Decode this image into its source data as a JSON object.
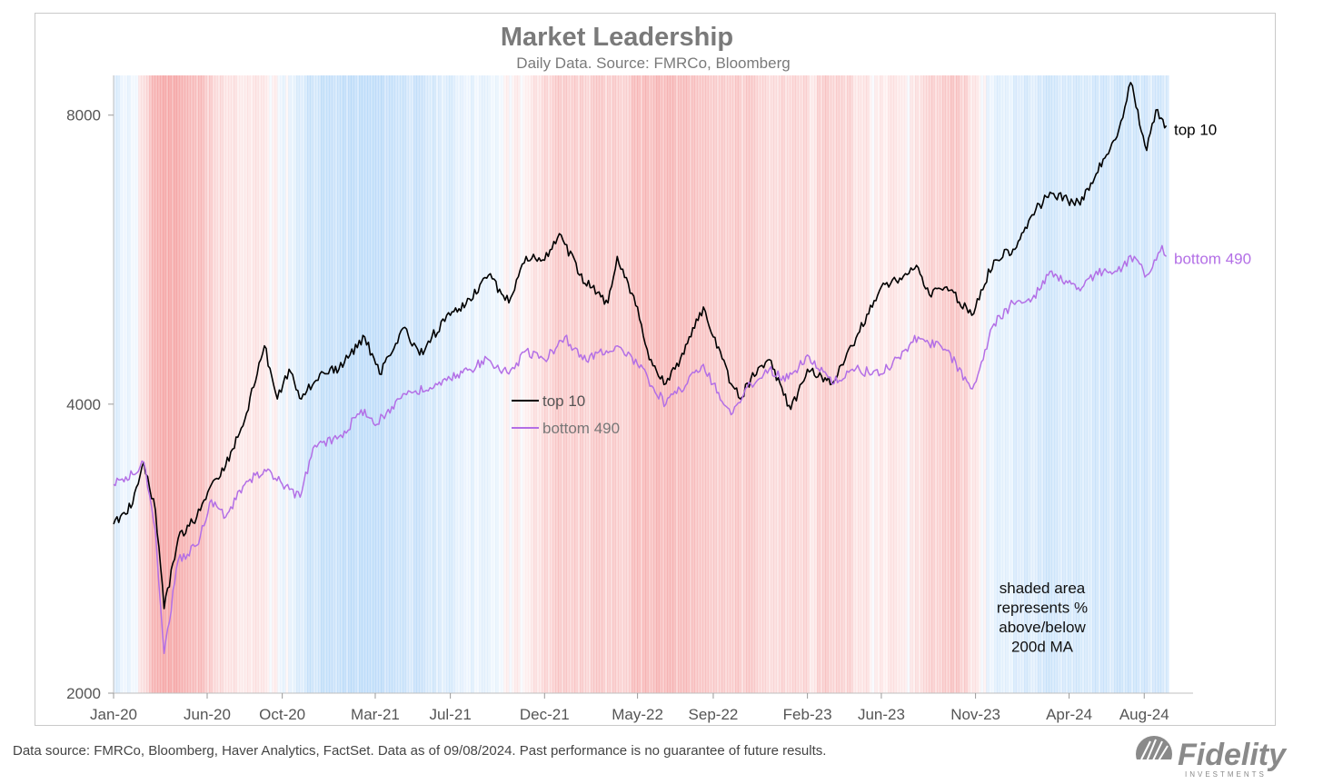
{
  "chart_data": {
    "type": "line",
    "title": "Market Leadership",
    "subtitle": "Daily Data.  Source: FMRCo, Bloomberg",
    "y_scale": "log",
    "ylim": [
      2000,
      8800
    ],
    "y_ticks": [
      {
        "value": 2000,
        "label": "2000"
      },
      {
        "value": 4000,
        "label": "4000"
      },
      {
        "value": 8000,
        "label": "8000"
      }
    ],
    "x_range": [
      "2020-01-01",
      "2024-09-08"
    ],
    "x_ticks": [
      {
        "date": "2020-01-01",
        "label": "Jan-20"
      },
      {
        "date": "2020-06-01",
        "label": "Jun-20"
      },
      {
        "date": "2020-10-01",
        "label": "Oct-20"
      },
      {
        "date": "2021-03-01",
        "label": "Mar-21"
      },
      {
        "date": "2021-07-01",
        "label": "Jul-21"
      },
      {
        "date": "2021-12-01",
        "label": "Dec-21"
      },
      {
        "date": "2022-05-01",
        "label": "May-22"
      },
      {
        "date": "2022-09-01",
        "label": "Sep-22"
      },
      {
        "date": "2023-02-01",
        "label": "Feb-23"
      },
      {
        "date": "2023-06-01",
        "label": "Jun-23"
      },
      {
        "date": "2023-11-01",
        "label": "Nov-23"
      },
      {
        "date": "2024-04-01",
        "label": "Apr-24"
      },
      {
        "date": "2024-08-01",
        "label": "Aug-24"
      }
    ],
    "series": [
      {
        "name": "top 10",
        "color": "#000000",
        "points": [
          [
            "2020-01-01",
            3000
          ],
          [
            "2020-02-01",
            3150
          ],
          [
            "2020-02-19",
            3480
          ],
          [
            "2020-03-09",
            3100
          ],
          [
            "2020-03-23",
            2450
          ],
          [
            "2020-04-15",
            2900
          ],
          [
            "2020-05-15",
            3050
          ],
          [
            "2020-06-08",
            3300
          ],
          [
            "2020-07-01",
            3450
          ],
          [
            "2020-08-01",
            3850
          ],
          [
            "2020-09-02",
            4600
          ],
          [
            "2020-09-23",
            4050
          ],
          [
            "2020-10-12",
            4350
          ],
          [
            "2020-11-01",
            4050
          ],
          [
            "2020-12-01",
            4300
          ],
          [
            "2021-01-01",
            4350
          ],
          [
            "2021-02-12",
            4700
          ],
          [
            "2021-03-08",
            4300
          ],
          [
            "2021-04-15",
            4800
          ],
          [
            "2021-05-12",
            4500
          ],
          [
            "2021-06-01",
            4700
          ],
          [
            "2021-07-01",
            4950
          ],
          [
            "2021-08-01",
            5150
          ],
          [
            "2021-09-01",
            5450
          ],
          [
            "2021-10-04",
            5100
          ],
          [
            "2021-11-01",
            5700
          ],
          [
            "2021-12-01",
            5650
          ],
          [
            "2021-12-28",
            6000
          ],
          [
            "2022-01-27",
            5450
          ],
          [
            "2022-03-14",
            5100
          ],
          [
            "2022-03-29",
            5700
          ],
          [
            "2022-05-01",
            5050
          ],
          [
            "2022-05-20",
            4450
          ],
          [
            "2022-06-16",
            4200
          ],
          [
            "2022-07-01",
            4350
          ],
          [
            "2022-08-16",
            5050
          ],
          [
            "2022-09-01",
            4700
          ],
          [
            "2022-09-30",
            4200
          ],
          [
            "2022-10-15",
            4050
          ],
          [
            "2022-11-01",
            4250
          ],
          [
            "2022-12-01",
            4450
          ],
          [
            "2023-01-05",
            3950
          ],
          [
            "2023-02-01",
            4350
          ],
          [
            "2023-03-13",
            4200
          ],
          [
            "2023-04-15",
            4600
          ],
          [
            "2023-06-01",
            5300
          ],
          [
            "2023-07-31",
            5550
          ],
          [
            "2023-08-18",
            5200
          ],
          [
            "2023-09-15",
            5300
          ],
          [
            "2023-10-26",
            4950
          ],
          [
            "2023-12-01",
            5650
          ],
          [
            "2024-01-01",
            5800
          ],
          [
            "2024-02-01",
            6300
          ],
          [
            "2024-03-01",
            6650
          ],
          [
            "2024-04-19",
            6450
          ],
          [
            "2024-05-15",
            6950
          ],
          [
            "2024-06-18",
            7600
          ],
          [
            "2024-07-10",
            8650
          ],
          [
            "2024-08-05",
            7350
          ],
          [
            "2024-08-20",
            8100
          ],
          [
            "2024-09-06",
            7800
          ]
        ]
      },
      {
        "name": "bottom 490",
        "color": "#b36fe6",
        "points": [
          [
            "2020-01-01",
            3300
          ],
          [
            "2020-02-01",
            3380
          ],
          [
            "2020-02-19",
            3480
          ],
          [
            "2020-03-09",
            2950
          ],
          [
            "2020-03-23",
            2200
          ],
          [
            "2020-04-15",
            2750
          ],
          [
            "2020-05-15",
            2850
          ],
          [
            "2020-06-08",
            3180
          ],
          [
            "2020-07-01",
            3050
          ],
          [
            "2020-08-01",
            3300
          ],
          [
            "2020-09-02",
            3420
          ],
          [
            "2020-10-01",
            3300
          ],
          [
            "2020-10-30",
            3200
          ],
          [
            "2020-11-20",
            3600
          ],
          [
            "2021-01-01",
            3700
          ],
          [
            "2021-02-12",
            3950
          ],
          [
            "2021-03-01",
            3800
          ],
          [
            "2021-04-15",
            4100
          ],
          [
            "2021-06-01",
            4150
          ],
          [
            "2021-07-01",
            4250
          ],
          [
            "2021-08-01",
            4350
          ],
          [
            "2021-09-01",
            4450
          ],
          [
            "2021-10-04",
            4300
          ],
          [
            "2021-11-01",
            4550
          ],
          [
            "2021-12-01",
            4450
          ],
          [
            "2022-01-03",
            4700
          ],
          [
            "2022-02-01",
            4450
          ],
          [
            "2022-03-29",
            4600
          ],
          [
            "2022-05-01",
            4400
          ],
          [
            "2022-06-16",
            4000
          ],
          [
            "2022-08-16",
            4400
          ],
          [
            "2022-09-01",
            4200
          ],
          [
            "2022-09-30",
            3900
          ],
          [
            "2022-11-01",
            4200
          ],
          [
            "2022-12-01",
            4350
          ],
          [
            "2023-01-01",
            4250
          ],
          [
            "2023-02-01",
            4500
          ],
          [
            "2023-03-13",
            4200
          ],
          [
            "2023-04-15",
            4350
          ],
          [
            "2023-05-31",
            4300
          ],
          [
            "2023-07-31",
            4700
          ],
          [
            "2023-09-15",
            4550
          ],
          [
            "2023-10-27",
            4150
          ],
          [
            "2023-12-01",
            4850
          ],
          [
            "2024-01-01",
            5100
          ],
          [
            "2024-02-01",
            5150
          ],
          [
            "2024-03-01",
            5500
          ],
          [
            "2024-04-19",
            5250
          ],
          [
            "2024-05-15",
            5500
          ],
          [
            "2024-06-18",
            5500
          ],
          [
            "2024-07-16",
            5700
          ],
          [
            "2024-08-05",
            5450
          ],
          [
            "2024-08-30",
            5850
          ],
          [
            "2024-09-06",
            5700
          ]
        ]
      }
    ],
    "shading": {
      "meaning": "shaded area represents % above/below 200d MA",
      "positive_color": "#8fc3f5",
      "negative_color": "#f28a8a",
      "intensity": [
        [
          "2020-01-01",
          0.25
        ],
        [
          "2020-02-01",
          0.1
        ],
        [
          "2020-03-01",
          -0.7
        ],
        [
          "2020-03-20",
          -0.9
        ],
        [
          "2020-05-01",
          -0.75
        ],
        [
          "2020-06-01",
          -0.45
        ],
        [
          "2020-07-01",
          -0.25
        ],
        [
          "2020-08-15",
          -0.15
        ],
        [
          "2020-09-15",
          -0.05
        ],
        [
          "2020-10-15",
          0.2
        ],
        [
          "2020-11-15",
          0.5
        ],
        [
          "2021-01-01",
          0.55
        ],
        [
          "2021-02-15",
          0.6
        ],
        [
          "2021-04-01",
          0.55
        ],
        [
          "2021-05-15",
          0.4
        ],
        [
          "2021-07-01",
          0.25
        ],
        [
          "2021-08-15",
          0.15
        ],
        [
          "2021-09-15",
          0.05
        ],
        [
          "2021-11-01",
          -0.15
        ],
        [
          "2021-12-01",
          -0.3
        ],
        [
          "2022-01-01",
          -0.45
        ],
        [
          "2022-02-15",
          -0.4
        ],
        [
          "2022-04-01",
          -0.45
        ],
        [
          "2022-06-01",
          -0.75
        ],
        [
          "2022-07-15",
          -0.55
        ],
        [
          "2022-09-01",
          -0.5
        ],
        [
          "2022-10-15",
          -0.45
        ],
        [
          "2022-11-15",
          -0.3
        ],
        [
          "2023-01-01",
          -0.4
        ],
        [
          "2023-02-01",
          -0.25
        ],
        [
          "2023-03-01",
          -0.45
        ],
        [
          "2023-04-15",
          -0.25
        ],
        [
          "2023-06-01",
          -0.05
        ],
        [
          "2023-07-15",
          -0.1
        ],
        [
          "2023-08-15",
          -0.35
        ],
        [
          "2023-10-01",
          -0.55
        ],
        [
          "2023-11-15",
          0.1
        ],
        [
          "2024-01-01",
          0.3
        ],
        [
          "2024-02-15",
          0.35
        ],
        [
          "2024-04-01",
          0.4
        ],
        [
          "2024-05-15",
          0.35
        ],
        [
          "2024-07-01",
          0.45
        ],
        [
          "2024-08-15",
          0.35
        ],
        [
          "2024-09-08",
          0.3
        ]
      ]
    },
    "legend": {
      "placement": "center",
      "items": [
        "top 10",
        "bottom 490"
      ]
    },
    "end_labels": [
      "top 10",
      "bottom 490"
    ],
    "annotation": [
      "shaded area",
      "represents %",
      "above/below",
      "200d MA"
    ],
    "grid": false
  },
  "footnote": "Data source: FMRCo, Bloomberg, Haver Analytics, FactSet. Data as of 09/08/2024. Past performance is no guarantee of future results.",
  "logo": {
    "text": "Fidelity",
    "subtext": "INVESTMENTS",
    "color": "#8a8a8a"
  }
}
